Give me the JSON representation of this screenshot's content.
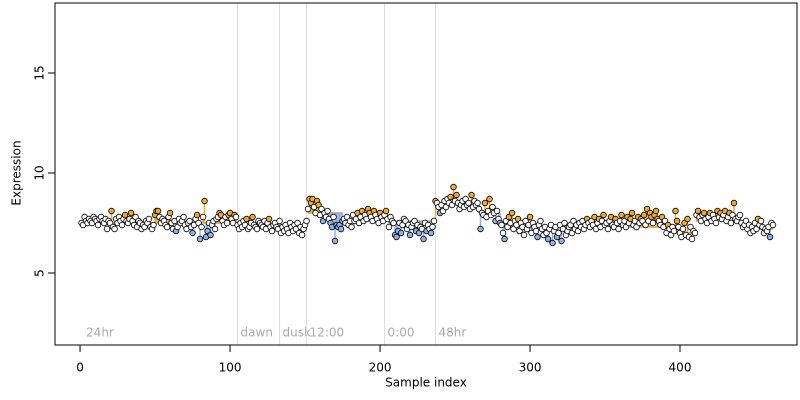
{
  "chart_data": {
    "type": "scatter",
    "xlabel": "Sample index",
    "ylabel": "Expression",
    "xlim": [
      -16.7,
      478
    ],
    "ylim": [
      1.4,
      18.5
    ],
    "xticks": [
      0,
      100,
      200,
      300,
      400
    ],
    "yticks": [
      5,
      10,
      15
    ],
    "above_color": "#f0a830",
    "below_color": "#8fb0e6",
    "events": [
      {
        "x": 2,
        "label": "24hr",
        "line": false
      },
      {
        "x": 105,
        "label": "dawn",
        "line": true
      },
      {
        "x": 133,
        "label": "dusk",
        "line": true
      },
      {
        "x": 151,
        "label": "12:00",
        "line": true
      },
      {
        "x": 203,
        "label": "0:00",
        "line": true
      },
      {
        "x": 237,
        "label": "48hr",
        "line": true
      }
    ],
    "fit": [
      {
        "start": 1,
        "end": 105,
        "level": 7.5
      },
      {
        "start": 106,
        "end": 151,
        "level": 7.3
      },
      {
        "start": 152,
        "end": 175,
        "level": 8.0
      },
      {
        "start": 176,
        "end": 237,
        "level": 7.6
      },
      {
        "start": 238,
        "end": 265,
        "level": 8.4
      },
      {
        "start": 266,
        "end": 280,
        "level": 8.0
      },
      {
        "start": 281,
        "end": 390,
        "level": 7.3
      },
      {
        "start": 391,
        "end": 410,
        "level": 7.0
      },
      {
        "start": 411,
        "end": 445,
        "level": 7.6
      },
      {
        "start": 446,
        "end": 462,
        "level": 7.2
      }
    ],
    "values": [
      7.5,
      7.4,
      7.8,
      7.6,
      7.5,
      7.7,
      7.6,
      7.5,
      7.8,
      7.7,
      7.6,
      7.4,
      7.7,
      7.8,
      7.6,
      7.5,
      7.7,
      7.2,
      7.6,
      7.5,
      8.1,
      7.3,
      7.2,
      7.7,
      7.5,
      7.8,
      7.6,
      7.4,
      7.7,
      7.9,
      7.6,
      7.5,
      7.7,
      8.0,
      7.6,
      7.4,
      7.8,
      7.3,
      7.6,
      7.5,
      7.2,
      7.4,
      7.3,
      7.6,
      7.5,
      7.7,
      7.3,
      7.2,
      7.4,
      7.9,
      8.1,
      8.1,
      7.8,
      7.5,
      7.7,
      7.6,
      7.4,
      7.3,
      7.8,
      8.0,
      7.5,
      7.2,
      7.6,
      7.1,
      7.3,
      7.7,
      7.5,
      7.6,
      7.8,
      7.4,
      7.2,
      7.5,
      7.6,
      7.3,
      7.0,
      7.4,
      7.7,
      7.9,
      7.5,
      6.7,
      7.3,
      7.8,
      8.6,
      6.8,
      7.1,
      7.5,
      6.9,
      7.4,
      7.6,
      7.2,
      7.7,
      7.8,
      8.0,
      7.9,
      7.6,
      7.4,
      7.8,
      7.5,
      7.9,
      8.0,
      7.7,
      7.5,
      7.9,
      7.8,
      7.4,
      7.2,
      7.5,
      7.3,
      7.6,
      7.4,
      7.7,
      7.2,
      7.3,
      7.5,
      7.8,
      7.4,
      7.3,
      7.2,
      7.6,
      7.5,
      7.4,
      7.3,
      7.6,
      7.2,
      7.5,
      7.7,
      7.3,
      7.1,
      7.4,
      7.5,
      7.3,
      7.2,
      7.6,
      7.0,
      7.3,
      7.1,
      7.4,
      7.2,
      7.0,
      7.5,
      7.3,
      7.1,
      7.4,
      7.2,
      7.5,
      7.0,
      7.3,
      6.9,
      7.2,
      7.4,
      7.6,
      8.2,
      8.7,
      8.5,
      8.7,
      8.3,
      8.0,
      8.6,
      8.4,
      7.9,
      8.2,
      7.6,
      8.0,
      7.8,
      8.1,
      7.7,
      7.5,
      7.3,
      7.8,
      6.6,
      7.4,
      7.3,
      7.4,
      7.2,
      7.6,
      7.7,
      7.5,
      7.8,
      7.4,
      7.6,
      7.3,
      7.9,
      7.6,
      7.7,
      8.0,
      7.5,
      7.8,
      8.1,
      7.6,
      7.9,
      7.7,
      8.2,
      8.0,
      7.8,
      7.6,
      8.1,
      7.9,
      7.7,
      7.5,
      8.0,
      7.8,
      7.6,
      7.9,
      8.1,
      7.7,
      7.3,
      7.8,
      7.6,
      7.5,
      6.9,
      6.8,
      7.1,
      7.5,
      7.0,
      7.4,
      7.7,
      7.6,
      7.2,
      7.4,
      6.9,
      7.3,
      7.5,
      7.6,
      7.1,
      7.4,
      7.0,
      7.3,
      7.2,
      6.7,
      7.5,
      7.1,
      7.4,
      7.2,
      7.0,
      7.3,
      7.6,
      8.6,
      8.5,
      8.3,
      8.0,
      8.4,
      8.1,
      8.6,
      8.3,
      8.7,
      8.5,
      8.8,
      8.4,
      9.3,
      8.6,
      8.9,
      8.5,
      8.2,
      8.4,
      8.6,
      8.3,
      8.7,
      8.4,
      8.5,
      8.2,
      8.9,
      8.3,
      8.6,
      8.4,
      8.5,
      8.2,
      7.2,
      8.0,
      7.9,
      8.5,
      7.8,
      8.1,
      8.7,
      7.9,
      8.3,
      8.0,
      7.6,
      8.1,
      7.7,
      7.5,
      7.4,
      7.0,
      6.7,
      7.6,
      7.3,
      7.8,
      7.5,
      8.0,
      7.2,
      7.6,
      7.4,
      7.7,
      7.1,
      7.5,
      7.3,
      6.9,
      7.6,
      7.2,
      7.4,
      7.8,
      7.0,
      7.5,
      7.3,
      7.1,
      6.8,
      7.4,
      7.6,
      7.2,
      6.9,
      7.3,
      7.0,
      6.7,
      7.2,
      7.4,
      6.5,
      7.1,
      7.3,
      6.8,
      7.0,
      7.4,
      6.6,
      7.2,
      7.5,
      6.9,
      7.1,
      7.3,
      7.4,
      7.0,
      7.6,
      7.2,
      7.4,
      7.1,
      7.5,
      7.3,
      7.6,
      7.2,
      7.4,
      7.7,
      7.5,
      7.3,
      7.6,
      7.4,
      7.8,
      7.2,
      7.5,
      7.7,
      7.3,
      7.6,
      7.9,
      7.4,
      7.5,
      7.2,
      7.6,
      7.8,
      7.4,
      7.3,
      7.7,
      7.5,
      7.2,
      7.6,
      7.9,
      7.4,
      7.6,
      7.3,
      7.8,
      7.5,
      7.7,
      8.0,
      7.4,
      7.6,
      7.3,
      7.8,
      7.5,
      7.7,
      7.6,
      7.9,
      7.4,
      8.2,
      7.6,
      8.0,
      7.8,
      7.5,
      7.9,
      8.1,
      7.7,
      7.6,
      7.4,
      7.8,
      7.3,
      7.6,
      7.0,
      7.4,
      7.2,
      6.9,
      7.3,
      7.1,
      8.1,
      7.6,
      7.3,
      7.0,
      6.8,
      7.2,
      7.5,
      6.9,
      7.7,
      6.8,
      7.3,
      6.7,
      7.1,
      7.0,
      7.9,
      8.1,
      7.8,
      7.6,
      7.9,
      8.0,
      7.7,
      7.5,
      7.8,
      8.0,
      7.6,
      7.9,
      7.7,
      7.5,
      8.1,
      7.8,
      8.0,
      7.7,
      7.9,
      8.1,
      7.6,
      7.8,
      8.0,
      7.5,
      7.9,
      8.5,
      7.7,
      7.6,
      7.8,
      7.9,
      7.5,
      7.3,
      7.4,
      7.6,
      7.2,
      7.4,
      7.0,
      7.3,
      7.1,
      7.5,
      7.2,
      7.7,
      7.4,
      7.6,
      7.3,
      7.0,
      7.2,
      7.1,
      7.3,
      6.8,
      7.5,
      7.4
    ]
  }
}
